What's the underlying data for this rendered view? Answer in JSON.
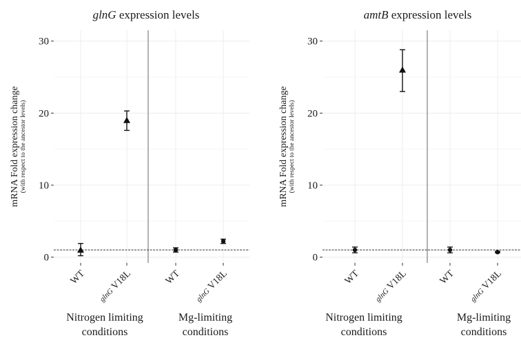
{
  "chart_data": [
    {
      "type": "scatter",
      "title_italic": "glnG",
      "title_rest": " expression levels",
      "ylabel": "mRNA Fold expression change",
      "ylabel_sub": "(with respect to the ancestor levels)",
      "ylim": [
        -0.8,
        31.5
      ],
      "yticks": [
        "0",
        "10",
        "20",
        "30"
      ],
      "reference_line": 1,
      "grid": true,
      "categories": [
        {
          "italic": "",
          "rest": "WT"
        },
        {
          "italic": "glnG",
          "rest": " V18L"
        },
        {
          "italic": "",
          "rest": "WT"
        },
        {
          "italic": "glnG",
          "rest": " V18L"
        }
      ],
      "groups": [
        {
          "lines": [
            "Nitrogen limiting",
            "conditions"
          ]
        },
        {
          "lines": [
            "Mg-limiting",
            "conditions"
          ]
        }
      ],
      "points": [
        {
          "category": 0,
          "y": 1.0,
          "ymin": 0.2,
          "ymax": 1.9,
          "marker": "triangle"
        },
        {
          "category": 1,
          "y": 19.0,
          "ymin": 17.6,
          "ymax": 20.3,
          "marker": "triangle"
        },
        {
          "category": 2,
          "y": 1.0,
          "ymin": 0.7,
          "ymax": 1.3,
          "marker": "circle"
        },
        {
          "category": 3,
          "y": 2.2,
          "ymin": 1.9,
          "ymax": 2.5,
          "marker": "circle"
        }
      ]
    },
    {
      "type": "scatter",
      "title_italic": "amtB",
      "title_rest": " expression levels",
      "ylabel": "mRNA Fold expression change",
      "ylabel_sub": "(with respect to the ancestor levels)",
      "ylim": [
        -0.8,
        31.5
      ],
      "yticks": [
        "0",
        "10",
        "20",
        "30"
      ],
      "reference_line": 1,
      "grid": true,
      "categories": [
        {
          "italic": "",
          "rest": "WT"
        },
        {
          "italic": "glnG",
          "rest": " V18L"
        },
        {
          "italic": "",
          "rest": "WT"
        },
        {
          "italic": "glnG",
          "rest": " V18L"
        }
      ],
      "groups": [
        {
          "lines": [
            "Nitrogen limiting",
            "conditions"
          ]
        },
        {
          "lines": [
            "Mg-limiting",
            "conditions"
          ]
        }
      ],
      "points": [
        {
          "category": 0,
          "y": 1.0,
          "ymin": 0.6,
          "ymax": 1.4,
          "marker": "circle"
        },
        {
          "category": 1,
          "y": 26.0,
          "ymin": 23.0,
          "ymax": 28.8,
          "marker": "triangle"
        },
        {
          "category": 2,
          "y": 1.0,
          "ymin": 0.6,
          "ymax": 1.4,
          "marker": "circle"
        },
        {
          "category": 3,
          "y": 0.7,
          "ymin": 0.6,
          "ymax": 0.8,
          "marker": "circle"
        }
      ]
    }
  ]
}
